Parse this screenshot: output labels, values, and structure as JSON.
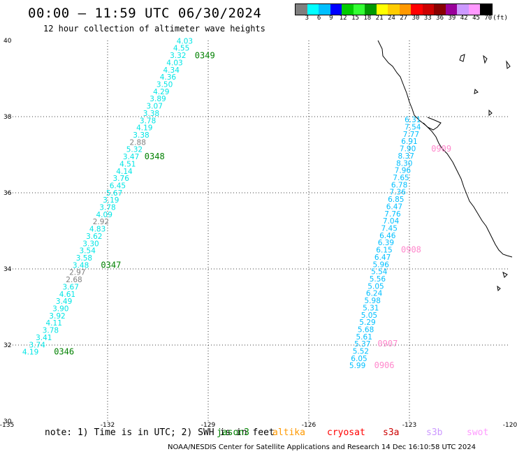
{
  "header": {
    "title": "00:00 – 11:59 UTC 06/30/2024",
    "subtitle": "12 hour collection of altimeter wave heights"
  },
  "colorbar": {
    "unit": "(ft)",
    "ticks": [
      "3",
      "6",
      "9",
      "12",
      "15",
      "18",
      "21",
      "24",
      "27",
      "30",
      "33",
      "36",
      "39",
      "42",
      "45",
      "70"
    ],
    "colors": [
      "#7f7f7f",
      "#00ffff",
      "#00bfff",
      "#0000ff",
      "#00cc00",
      "#33ff33",
      "#009900",
      "#ffff00",
      "#ffcc00",
      "#ff9900",
      "#ff0000",
      "#cc0000",
      "#880000",
      "#990099",
      "#cc99ff",
      "#ff99ff",
      "#000000"
    ]
  },
  "axes": {
    "lon_labels": [
      "-135",
      "-132",
      "-129",
      "-126",
      "-123",
      "-120"
    ],
    "lat_labels": [
      "40",
      "38",
      "36",
      "34",
      "32",
      "30"
    ],
    "lon_range": [
      -135,
      -120
    ],
    "lat_range": [
      30,
      40
    ]
  },
  "tracks": [
    {
      "points": [
        {
          "lon": -129.7,
          "lat": 39.92,
          "v": "4.03",
          "color": "#00e5e5"
        },
        {
          "lon": -129.8,
          "lat": 39.73,
          "v": "4.55",
          "color": "#00e5e5"
        },
        {
          "lon": -129.9,
          "lat": 39.54,
          "v": "3.32",
          "color": "#00e5e5"
        },
        {
          "lon": -130.0,
          "lat": 39.35,
          "v": "4.03",
          "color": "#00e5e5"
        },
        {
          "lon": -130.1,
          "lat": 39.16,
          "v": "4.34",
          "color": "#00e5e5"
        },
        {
          "lon": -130.2,
          "lat": 38.97,
          "v": "4.36",
          "color": "#00e5e5"
        },
        {
          "lon": -130.3,
          "lat": 38.78,
          "v": "3.50",
          "color": "#00e5e5"
        },
        {
          "lon": -130.4,
          "lat": 38.59,
          "v": "4.29",
          "color": "#00e5e5"
        },
        {
          "lon": -130.5,
          "lat": 38.4,
          "v": "3.89",
          "color": "#00e5e5"
        },
        {
          "lon": -130.6,
          "lat": 38.21,
          "v": "3.07",
          "color": "#00e5e5"
        },
        {
          "lon": -130.7,
          "lat": 38.02,
          "v": "3.38",
          "color": "#00e5e5"
        },
        {
          "lon": -130.8,
          "lat": 37.83,
          "v": "3.78",
          "color": "#00e5e5"
        },
        {
          "lon": -130.9,
          "lat": 37.64,
          "v": "4.19",
          "color": "#00e5e5"
        },
        {
          "lon": -131.0,
          "lat": 37.45,
          "v": "3.38",
          "color": "#00e5e5"
        },
        {
          "lon": -131.1,
          "lat": 37.26,
          "v": "2.88",
          "color": "#808080"
        },
        {
          "lon": -131.2,
          "lat": 37.07,
          "v": "5.32",
          "color": "#00e5e5"
        },
        {
          "lon": -131.3,
          "lat": 36.88,
          "v": "3.47",
          "color": "#00e5e5"
        },
        {
          "lon": -131.4,
          "lat": 36.69,
          "v": "4.51",
          "color": "#00e5e5"
        },
        {
          "lon": -131.5,
          "lat": 36.5,
          "v": "4.14",
          "color": "#00e5e5"
        },
        {
          "lon": -131.6,
          "lat": 36.31,
          "v": "3.76",
          "color": "#00e5e5"
        },
        {
          "lon": -131.7,
          "lat": 36.12,
          "v": "6.45",
          "color": "#00e5e5"
        },
        {
          "lon": -131.8,
          "lat": 35.93,
          "v": "5.67",
          "color": "#00e5e5"
        },
        {
          "lon": -131.9,
          "lat": 35.74,
          "v": "3.19",
          "color": "#00e5e5"
        },
        {
          "lon": -132.0,
          "lat": 35.55,
          "v": "3.78",
          "color": "#00e5e5"
        },
        {
          "lon": -132.1,
          "lat": 35.36,
          "v": "4.09",
          "color": "#00e5e5"
        },
        {
          "lon": -132.2,
          "lat": 35.17,
          "v": "2.92",
          "color": "#808080"
        },
        {
          "lon": -132.3,
          "lat": 34.98,
          "v": "4.83",
          "color": "#00e5e5"
        },
        {
          "lon": -132.4,
          "lat": 34.79,
          "v": "3.62",
          "color": "#00e5e5"
        },
        {
          "lon": -132.5,
          "lat": 34.6,
          "v": "3.30",
          "color": "#00e5e5"
        },
        {
          "lon": -132.6,
          "lat": 34.41,
          "v": "3.54",
          "color": "#00e5e5"
        },
        {
          "lon": -132.7,
          "lat": 34.22,
          "v": "3.58",
          "color": "#00e5e5"
        },
        {
          "lon": -132.8,
          "lat": 34.03,
          "v": "3.48",
          "color": "#00e5e5"
        },
        {
          "lon": -132.9,
          "lat": 33.84,
          "v": "2.97",
          "color": "#808080"
        },
        {
          "lon": -133.0,
          "lat": 33.65,
          "v": "2.68",
          "color": "#808080"
        },
        {
          "lon": -133.1,
          "lat": 33.46,
          "v": "3.67",
          "color": "#00e5e5"
        },
        {
          "lon": -133.2,
          "lat": 33.27,
          "v": "4.61",
          "color": "#00e5e5"
        },
        {
          "lon": -133.3,
          "lat": 33.08,
          "v": "3.49",
          "color": "#00e5e5"
        },
        {
          "lon": -133.4,
          "lat": 32.89,
          "v": "3.90",
          "color": "#00e5e5"
        },
        {
          "lon": -133.5,
          "lat": 32.7,
          "v": "3.92",
          "color": "#00e5e5"
        },
        {
          "lon": -133.6,
          "lat": 32.51,
          "v": "4.11",
          "color": "#00e5e5"
        },
        {
          "lon": -133.7,
          "lat": 32.32,
          "v": "3.78",
          "color": "#00e5e5"
        },
        {
          "lon": -133.9,
          "lat": 32.13,
          "v": "3.41",
          "color": "#00e5e5"
        },
        {
          "lon": -134.1,
          "lat": 31.94,
          "v": "3.74",
          "color": "#00e5e5"
        },
        {
          "lon": -134.3,
          "lat": 31.75,
          "v": "4.19",
          "color": "#00e5e5"
        }
      ],
      "time_labels": [
        {
          "text": "0349",
          "lon": -129.4,
          "lat": 39.53,
          "color": "#008000"
        },
        {
          "text": "0348",
          "lon": -130.9,
          "lat": 36.88,
          "color": "#008000"
        },
        {
          "text": "0347",
          "lon": -132.2,
          "lat": 34.03,
          "color": "#008000"
        },
        {
          "text": "0346",
          "lon": -133.6,
          "lat": 31.75,
          "color": "#008000"
        }
      ]
    },
    {
      "points": [
        {
          "lon": -122.9,
          "lat": 37.85,
          "v": "6.31",
          "color": "#00bfff"
        },
        {
          "lon": -122.9,
          "lat": 37.66,
          "v": "7.54",
          "color": "#00bfff"
        },
        {
          "lon": -122.95,
          "lat": 37.47,
          "v": "7.77",
          "color": "#00bfff"
        },
        {
          "lon": -123.0,
          "lat": 37.28,
          "v": "6.91",
          "color": "#00bfff"
        },
        {
          "lon": -123.05,
          "lat": 37.09,
          "v": "7.90",
          "color": "#00bfff"
        },
        {
          "lon": -123.1,
          "lat": 36.9,
          "v": "8.37",
          "color": "#00bfff"
        },
        {
          "lon": -123.15,
          "lat": 36.71,
          "v": "8.30",
          "color": "#00bfff"
        },
        {
          "lon": -123.2,
          "lat": 36.52,
          "v": "7.96",
          "color": "#00bfff"
        },
        {
          "lon": -123.25,
          "lat": 36.33,
          "v": "7.65",
          "color": "#00bfff"
        },
        {
          "lon": -123.3,
          "lat": 36.14,
          "v": "6.78",
          "color": "#00bfff"
        },
        {
          "lon": -123.35,
          "lat": 35.95,
          "v": "7.36",
          "color": "#00bfff"
        },
        {
          "lon": -123.4,
          "lat": 35.76,
          "v": "6.85",
          "color": "#00bfff"
        },
        {
          "lon": -123.45,
          "lat": 35.57,
          "v": "6.47",
          "color": "#00bfff"
        },
        {
          "lon": -123.5,
          "lat": 35.38,
          "v": "7.76",
          "color": "#00bfff"
        },
        {
          "lon": -123.55,
          "lat": 35.19,
          "v": "7.04",
          "color": "#00bfff"
        },
        {
          "lon": -123.6,
          "lat": 35.0,
          "v": "7.45",
          "color": "#00bfff"
        },
        {
          "lon": -123.65,
          "lat": 34.81,
          "v": "6.46",
          "color": "#00bfff"
        },
        {
          "lon": -123.7,
          "lat": 34.62,
          "v": "6.39",
          "color": "#00bfff"
        },
        {
          "lon": -123.75,
          "lat": 34.43,
          "v": "6.15",
          "color": "#00bfff"
        },
        {
          "lon": -123.8,
          "lat": 34.24,
          "v": "6.47",
          "color": "#00bfff"
        },
        {
          "lon": -123.85,
          "lat": 34.05,
          "v": "5.96",
          "color": "#00bfff"
        },
        {
          "lon": -123.9,
          "lat": 33.86,
          "v": "5.54",
          "color": "#00bfff"
        },
        {
          "lon": -123.95,
          "lat": 33.67,
          "v": "5.56",
          "color": "#00bfff"
        },
        {
          "lon": -124.0,
          "lat": 33.48,
          "v": "5.05",
          "color": "#00bfff"
        },
        {
          "lon": -124.05,
          "lat": 33.29,
          "v": "6.24",
          "color": "#00bfff"
        },
        {
          "lon": -124.1,
          "lat": 33.1,
          "v": "5.98",
          "color": "#00bfff"
        },
        {
          "lon": -124.15,
          "lat": 32.91,
          "v": "5.31",
          "color": "#00bfff"
        },
        {
          "lon": -124.2,
          "lat": 32.72,
          "v": "5.05",
          "color": "#00bfff"
        },
        {
          "lon": -124.25,
          "lat": 32.53,
          "v": "5.29",
          "color": "#00bfff"
        },
        {
          "lon": -124.3,
          "lat": 32.34,
          "v": "5.68",
          "color": "#00bfff"
        },
        {
          "lon": -124.35,
          "lat": 32.15,
          "v": "5.61",
          "color": "#00bfff"
        },
        {
          "lon": -124.4,
          "lat": 31.96,
          "v": "5.37",
          "color": "#00bfff"
        },
        {
          "lon": -124.45,
          "lat": 31.77,
          "v": "5.52",
          "color": "#00bfff"
        },
        {
          "lon": -124.5,
          "lat": 31.58,
          "v": "6.05",
          "color": "#00bfff"
        },
        {
          "lon": -124.55,
          "lat": 31.39,
          "v": "5.99",
          "color": "#00bfff"
        }
      ],
      "time_labels": [
        {
          "text": "0909",
          "lon": -122.35,
          "lat": 37.08,
          "color": "#ff88cc"
        },
        {
          "text": "0908",
          "lon": -123.25,
          "lat": 34.43,
          "color": "#ff88cc"
        },
        {
          "text": "0907",
          "lon": -123.95,
          "lat": 31.96,
          "color": "#ff88cc"
        },
        {
          "text": "0906",
          "lon": -124.05,
          "lat": 31.39,
          "color": "#ff88cc"
        }
      ]
    }
  ],
  "footer": {
    "note": "note: 1) Time is in UTC; 2) SWH is in feet",
    "satellites": [
      {
        "name": "jason3",
        "color": "#008000"
      },
      {
        "name": "altika",
        "color": "#ff9900"
      },
      {
        "name": "cryosat",
        "color": "#ff0000"
      },
      {
        "name": "s3a",
        "color": "#cc0000"
      },
      {
        "name": "s3b",
        "color": "#cc99ff"
      },
      {
        "name": "swot",
        "color": "#ff99ff"
      }
    ],
    "credit": "NOAA/NESDIS Center for Satellite Applications and Research    14 Dec 16:10:58 UTC 2024"
  }
}
